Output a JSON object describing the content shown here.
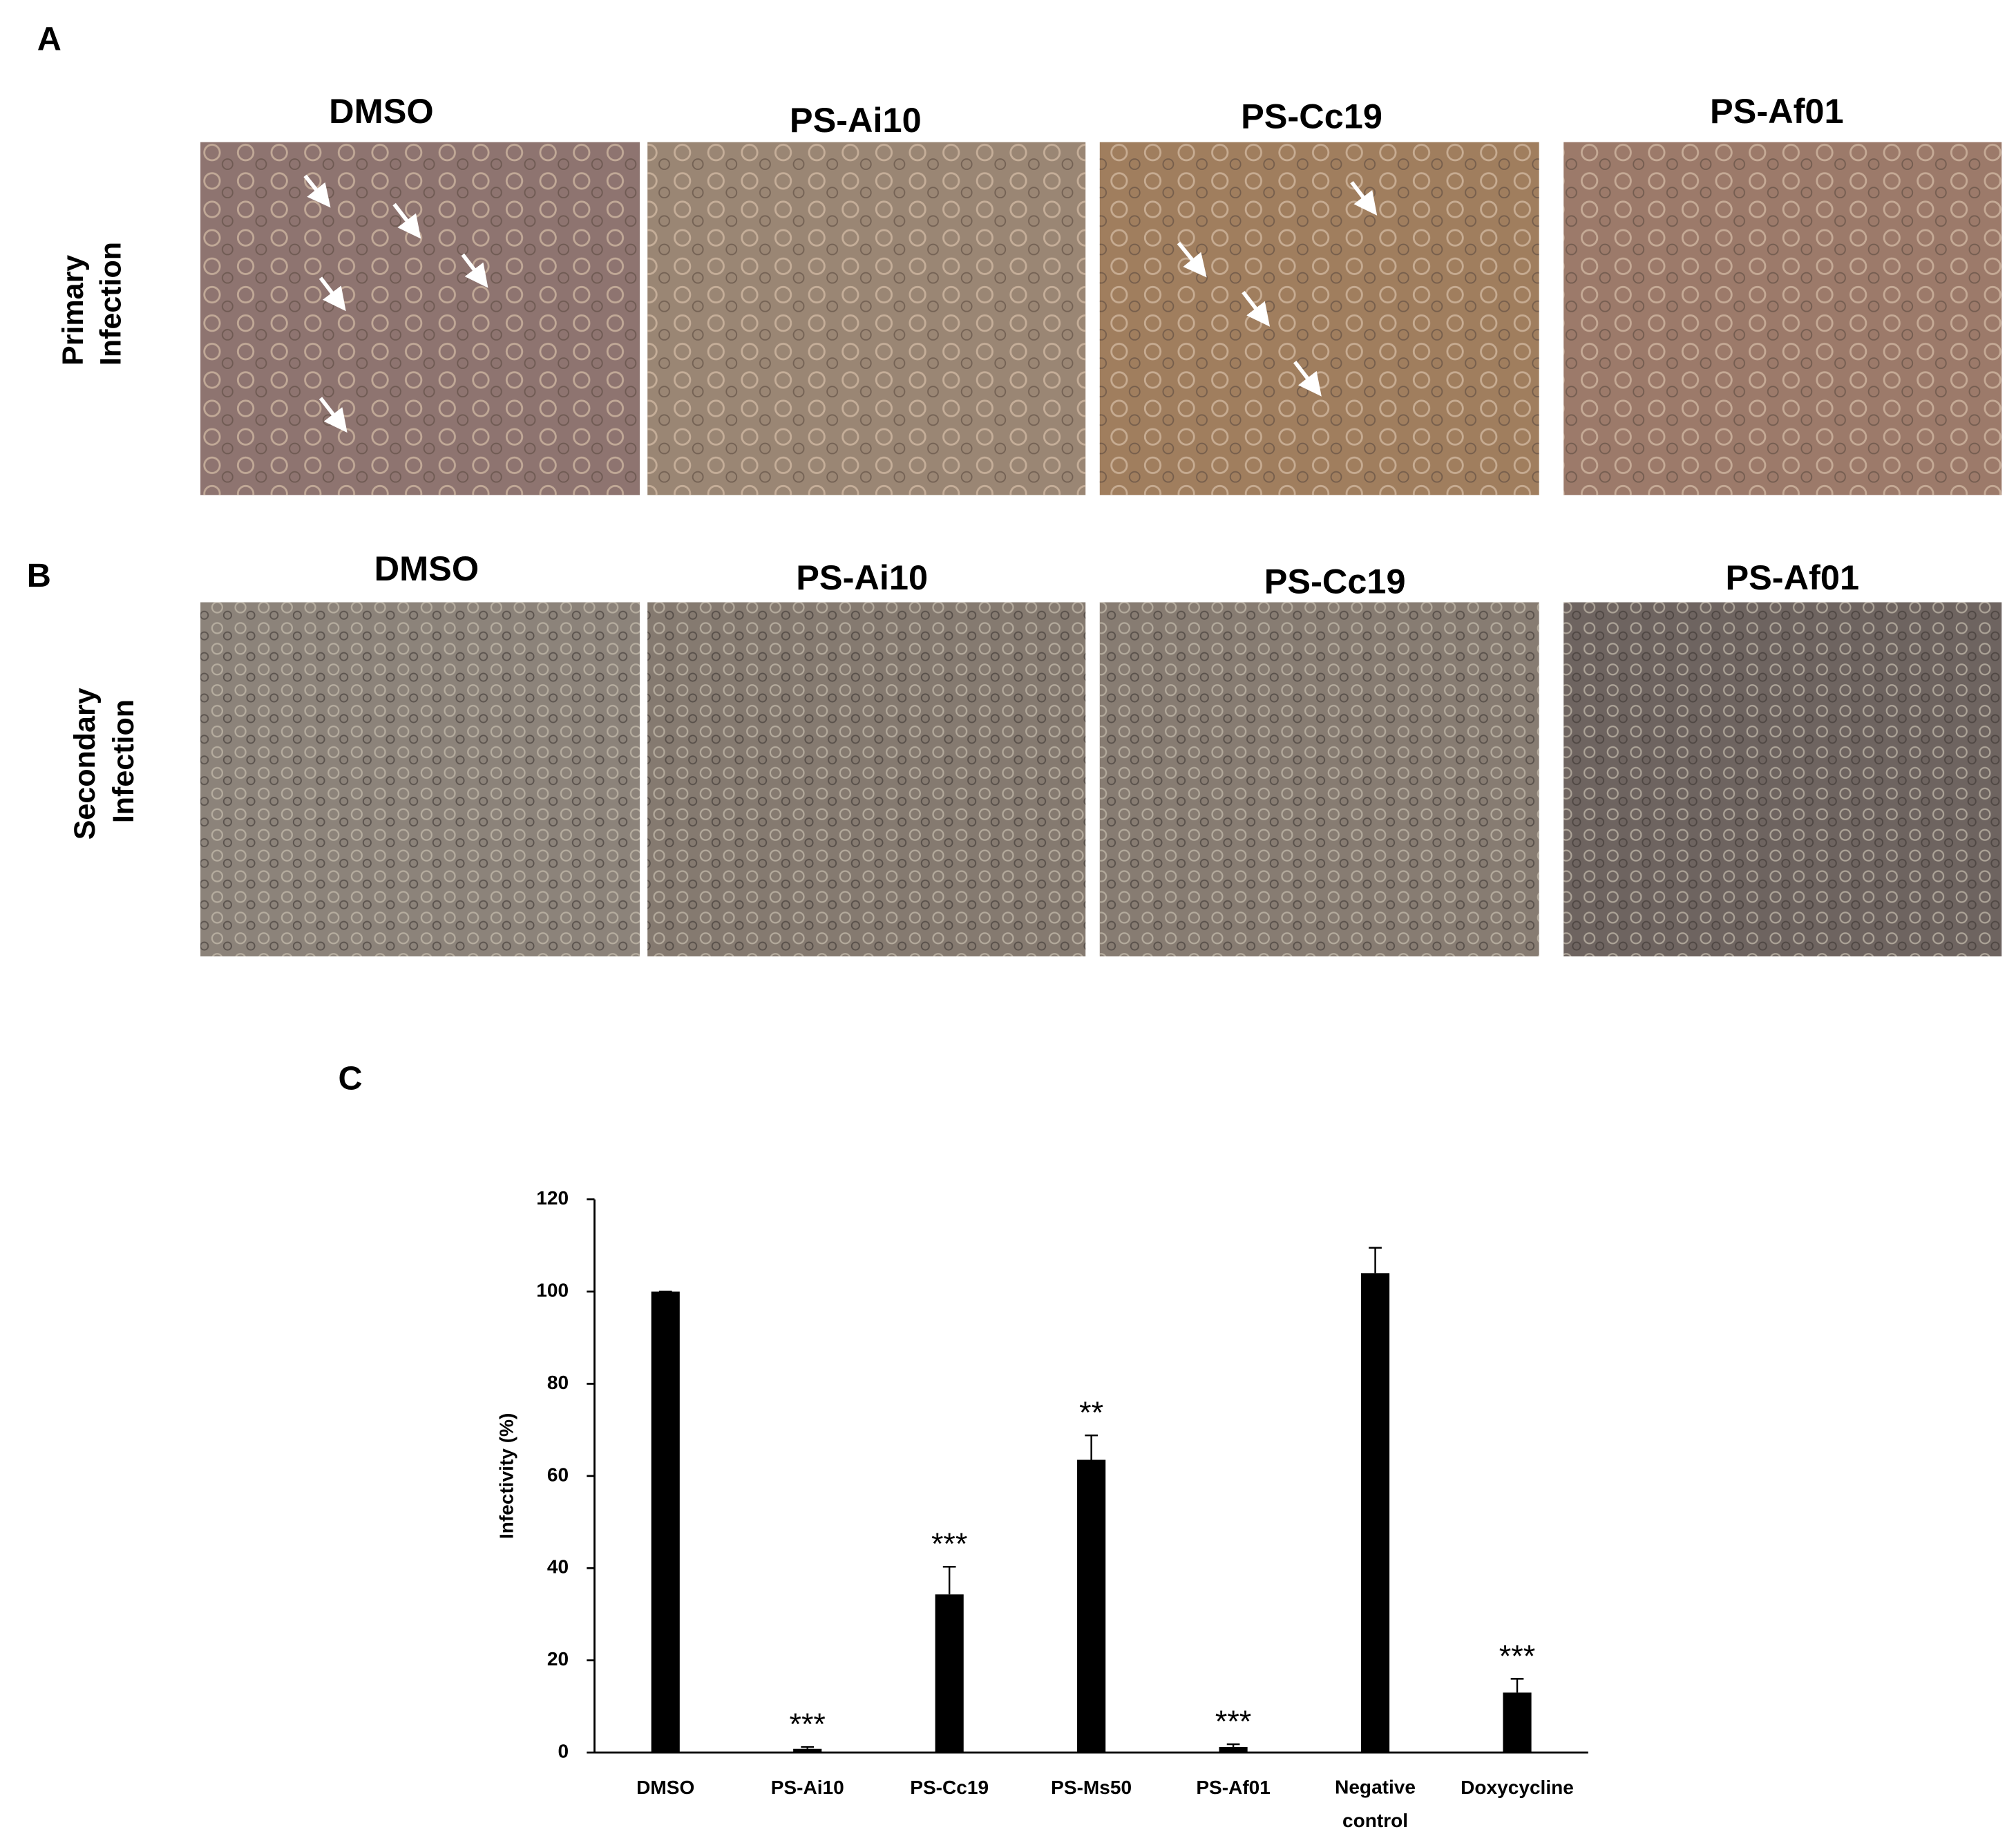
{
  "figure": {
    "panel_labels": [
      "A",
      "B",
      "C"
    ],
    "row_labels": [
      [
        "Primary",
        "Infection"
      ],
      [
        "Secondary",
        "Infection"
      ]
    ],
    "column_titles": [
      [
        "DMSO",
        "PS-Ai10",
        "PS-Cc19",
        "PS-Af01"
      ],
      [
        "DMSO",
        "PS-Ai10",
        "PS-Cc19",
        "PS-Af01"
      ]
    ]
  },
  "chart_data": {
    "type": "bar",
    "y_label": "Infectivity (%)",
    "categories": [
      "DMSO",
      "PS-Ai10",
      "PS-Cc19",
      "PS-Ms50",
      "PS-Af01",
      "Negative control",
      "Doxycycline"
    ],
    "values": [
      100,
      0.8,
      34.3,
      63.5,
      1.2,
      104,
      13
    ],
    "errors": [
      0,
      0.4,
      6,
      5.3,
      0.6,
      5.5,
      3
    ],
    "annotations": [
      null,
      "***",
      "***",
      "**",
      "***",
      null,
      "***"
    ],
    "color": "#000000",
    "ylim": [
      0,
      120
    ],
    "yticks": [
      0,
      20,
      40,
      60,
      80,
      100,
      120
    ],
    "grid": false
  }
}
